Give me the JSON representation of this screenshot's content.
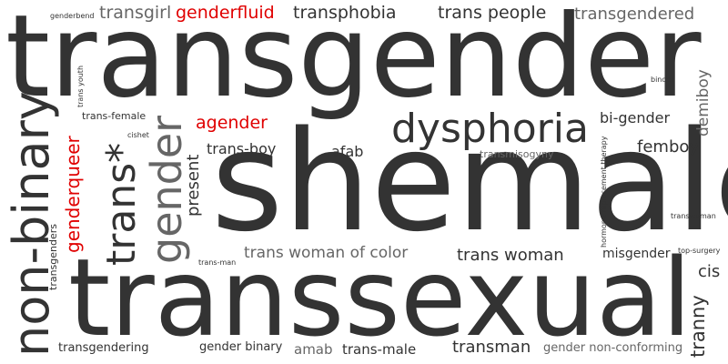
{
  "cloud": {
    "words": {
      "transgender": "transgender",
      "shemale": "shemale",
      "transsexual": "transsexual",
      "non_binary": "non-binary",
      "dysphoria": "dysphoria",
      "gender": "gender",
      "trans_star": "trans*",
      "genderqueer": "genderqueer",
      "present": "present",
      "transgenders": "transgenders",
      "genderbend": "genderbend",
      "transgirl": "transgirl",
      "genderfluid": "genderfluid",
      "transphobia": "transphobia",
      "trans_people": "trans people",
      "transgendered": "transgendered",
      "trans_youth": "trans youth",
      "trans_female": "trans-female",
      "agender": "agender",
      "cishet": "cishet",
      "trans_boy": "trans-boy",
      "afab": "afab",
      "transmisogyny": "transmisogyny",
      "bi_gender": "bi-gender",
      "femboy": "femboy",
      "demiboy": "demiboy",
      "binder": "binder",
      "hrt": "hormone replacement therapy",
      "transwoman": "transwoman",
      "trans_woman_of_color": "trans woman of color",
      "trans_woman": "trans woman",
      "misgender": "misgender",
      "trans_man": "trans-man",
      "top_surgery": "top-surgery",
      "cis": "cis",
      "tranny": "tranny",
      "transgendering": "transgendering",
      "gender_binary": "gender binary",
      "amab": "amab",
      "trans_male": "trans-male",
      "transman": "transman",
      "gender_non_conforming": "gender non-conforming"
    },
    "colors": {
      "dark": "#333333",
      "medium": "#666666",
      "red": "#e00000"
    }
  }
}
